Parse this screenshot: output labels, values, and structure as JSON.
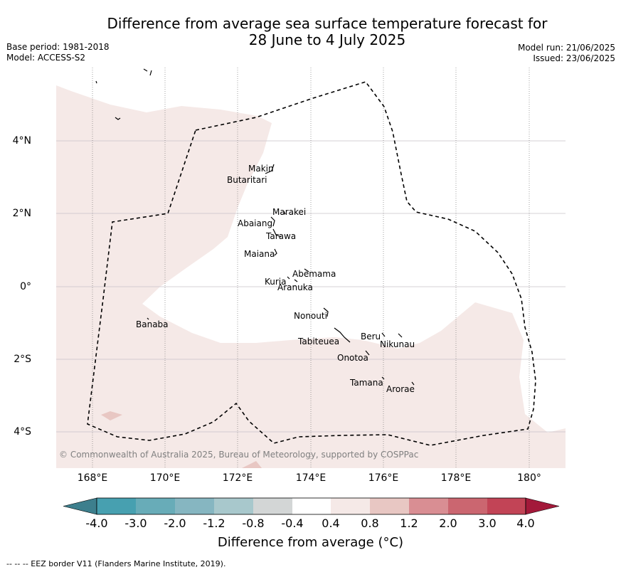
{
  "title_line1": "Difference from average sea surface temperature forecast for",
  "title_line2": "28 June to 4 July 2025",
  "left_meta": {
    "base_period": "Base period: 1981-2018",
    "model": "Model: ACCESS-S2"
  },
  "right_meta": {
    "model_run": "Model run: 21/06/2025",
    "issued": "Issued: 23/06/2025"
  },
  "copyright": "© Commonwealth of Australia 2025, Bureau of Meteorology, supported by COSPPac",
  "footer": "--  --  -- EEZ border V11 (Flanders Marine Institute, 2019).",
  "longitude_labels": [
    "168°E",
    "170°E",
    "172°E",
    "174°E",
    "176°E",
    "178°E",
    "180°"
  ],
  "latitude_labels": [
    "4°N",
    "2°N",
    "0°",
    "2°S",
    "4°S"
  ],
  "islands": {
    "makin": "Makin",
    "butaritari": "Butaritari",
    "marakei": "Marakei",
    "abaiang": "Abaiang",
    "tarawa": "Tarawa",
    "maiana": "Maiana",
    "abemama": "Abemama",
    "kuria": "Kuria",
    "aranuka": "Aranuka",
    "banaba": "Banaba",
    "nonouti": "Nonouti",
    "beru": "Beru",
    "tabiteuea": "Tabiteuea",
    "nikunau": "Nikunau",
    "onotoa": "Onotoa",
    "tamana": "Tamana",
    "arorae": "Arorae"
  },
  "colorbar": {
    "title": "Difference from average (°C)",
    "tick_labels": [
      "-4.0",
      "-3.0",
      "-2.0",
      "-1.2",
      "-0.8",
      "-0.4",
      "0.4",
      "0.8",
      "1.2",
      "2.0",
      "3.0",
      "4.0"
    ],
    "colors": [
      "#3d7f8d",
      "#47a0b0",
      "#68acb8",
      "#86b6c1",
      "#a8c8cc",
      "#d3d6d6",
      "#ffffff",
      "#f5e9e7",
      "#e8c7c3",
      "#d98e93",
      "#cb6670",
      "#c24456",
      "#a3193a"
    ]
  },
  "map_fill_colors": {
    "anomaly_0_4_to_0_8": "#f5e9e7",
    "anomaly_0_8_to_1_2": "#e8c7c3"
  }
}
